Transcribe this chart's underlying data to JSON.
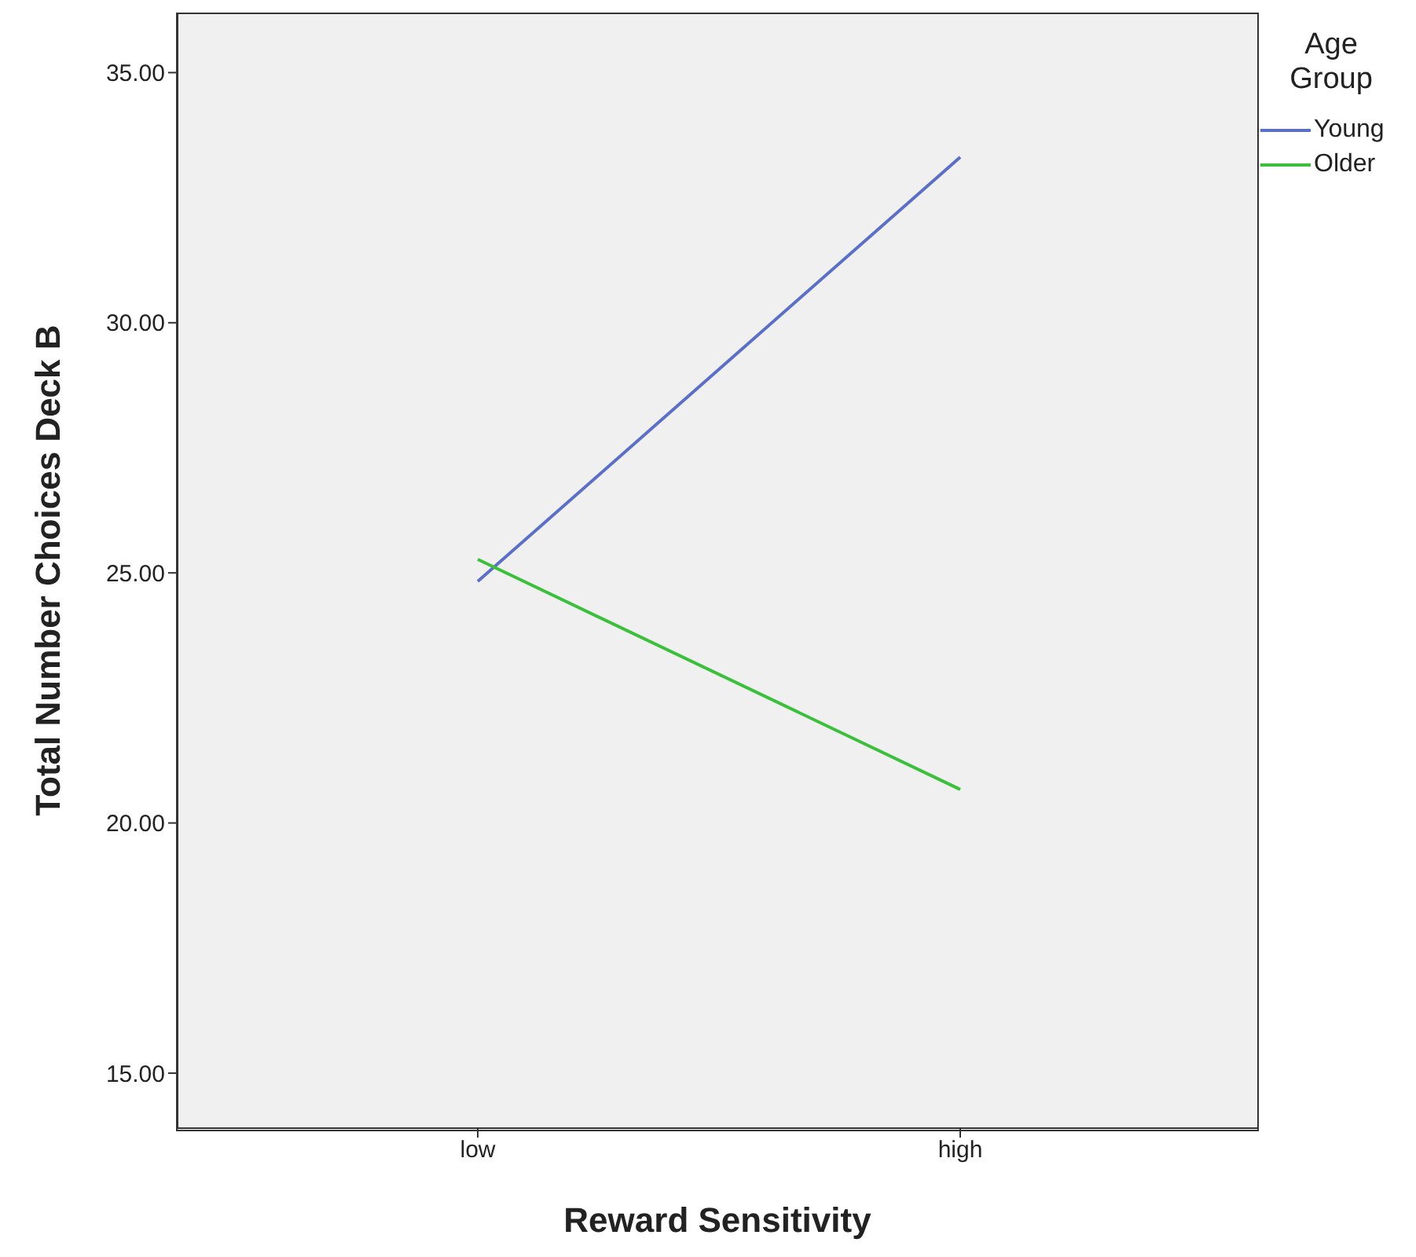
{
  "chart_data": {
    "type": "line",
    "xlabel": "Reward Sensitivity",
    "ylabel": "Total Number Choices Deck B",
    "legend_title": "Age Group",
    "legend": "top right",
    "grid": false,
    "marker": "none",
    "line_style": "solid",
    "categories": [
      "low",
      "high"
    ],
    "series": [
      {
        "name": "Young",
        "color": "#5b6fc4",
        "values": [
          24.83,
          33.31
        ]
      },
      {
        "name": "Older",
        "color": "#3cbf3c",
        "values": [
          25.27,
          20.67
        ]
      }
    ],
    "ylim": [
      13.9,
      36.2
    ],
    "yticks": [
      {
        "value": 15,
        "label": "15.00"
      },
      {
        "value": 20,
        "label": "20.00"
      },
      {
        "value": 25,
        "label": "25.00"
      },
      {
        "value": 30,
        "label": "30.00"
      },
      {
        "value": 35,
        "label": "35.00"
      }
    ]
  }
}
